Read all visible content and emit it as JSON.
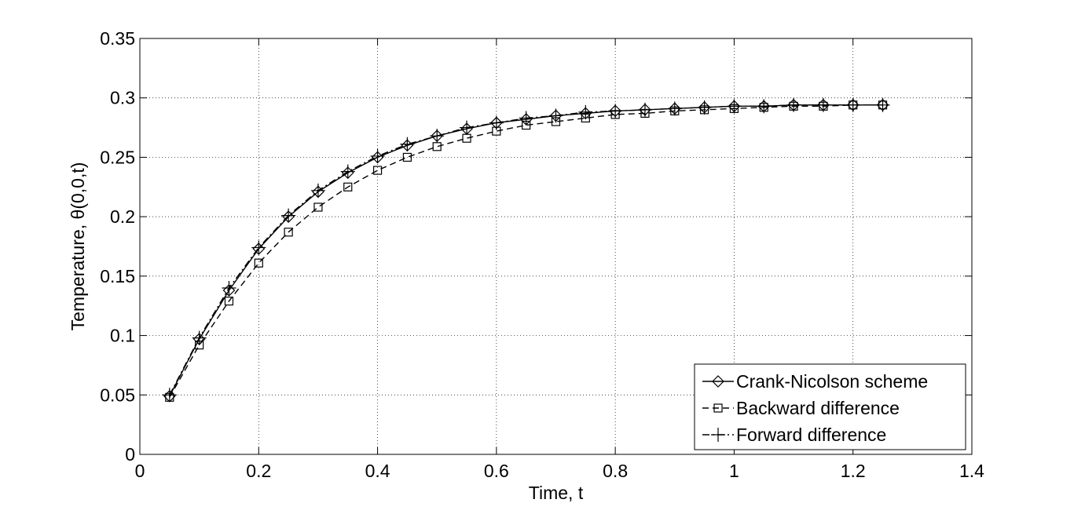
{
  "chart_data": {
    "type": "line",
    "title": "",
    "xlabel": "Time, t",
    "ylabel": "Temperature, θ(0,0,t)",
    "xlim": [
      0,
      1.4
    ],
    "ylim": [
      0,
      0.35
    ],
    "x_ticks": [
      0,
      0.2,
      0.4,
      0.6,
      0.8,
      1,
      1.2,
      1.4
    ],
    "y_ticks": [
      0,
      0.05,
      0.1,
      0.15,
      0.2,
      0.25,
      0.3,
      0.35
    ],
    "x_tick_labels": [
      "0",
      "0.2",
      "0.4",
      "0.6",
      "0.8",
      "1",
      "1.2",
      "1.4"
    ],
    "y_tick_labels": [
      "0",
      "0.05",
      "0.1",
      "0.15",
      "0.2",
      "0.25",
      "0.3",
      "0.35"
    ],
    "grid": true,
    "grid_style": "dotted",
    "legend_position": "bottom-right",
    "x": [
      0.05,
      0.1,
      0.15,
      0.2,
      0.25,
      0.3,
      0.35,
      0.4,
      0.45,
      0.5,
      0.55,
      0.6,
      0.65,
      0.7,
      0.75,
      0.8,
      0.85,
      0.9,
      0.95,
      1.0,
      1.05,
      1.1,
      1.15,
      1.2,
      1.25
    ],
    "series": [
      {
        "name": "Crank-Nicolson scheme",
        "line_style": "solid",
        "marker": "diamond",
        "color": "#000000",
        "values": [
          0.049,
          0.097,
          0.138,
          0.173,
          0.2,
          0.221,
          0.237,
          0.25,
          0.26,
          0.268,
          0.274,
          0.279,
          0.282,
          0.285,
          0.287,
          0.289,
          0.29,
          0.291,
          0.292,
          0.293,
          0.293,
          0.294,
          0.294,
          0.294,
          0.294
        ]
      },
      {
        "name": "Backward difference",
        "line_style": "dashed",
        "marker": "square",
        "color": "#000000",
        "values": [
          0.048,
          0.092,
          0.129,
          0.161,
          0.187,
          0.208,
          0.225,
          0.239,
          0.25,
          0.259,
          0.266,
          0.272,
          0.277,
          0.28,
          0.283,
          0.286,
          0.287,
          0.289,
          0.29,
          0.291,
          0.292,
          0.293,
          0.293,
          0.294,
          0.294
        ]
      },
      {
        "name": "Forward difference",
        "line_style": "dash-dot",
        "marker": "plus",
        "color": "#000000",
        "values": [
          0.05,
          0.098,
          0.14,
          0.174,
          0.201,
          0.222,
          0.238,
          0.251,
          0.261,
          0.268,
          0.275,
          0.279,
          0.283,
          0.285,
          0.288,
          0.289,
          0.29,
          0.291,
          0.292,
          0.293,
          0.293,
          0.294,
          0.294,
          0.294,
          0.294
        ]
      }
    ]
  }
}
